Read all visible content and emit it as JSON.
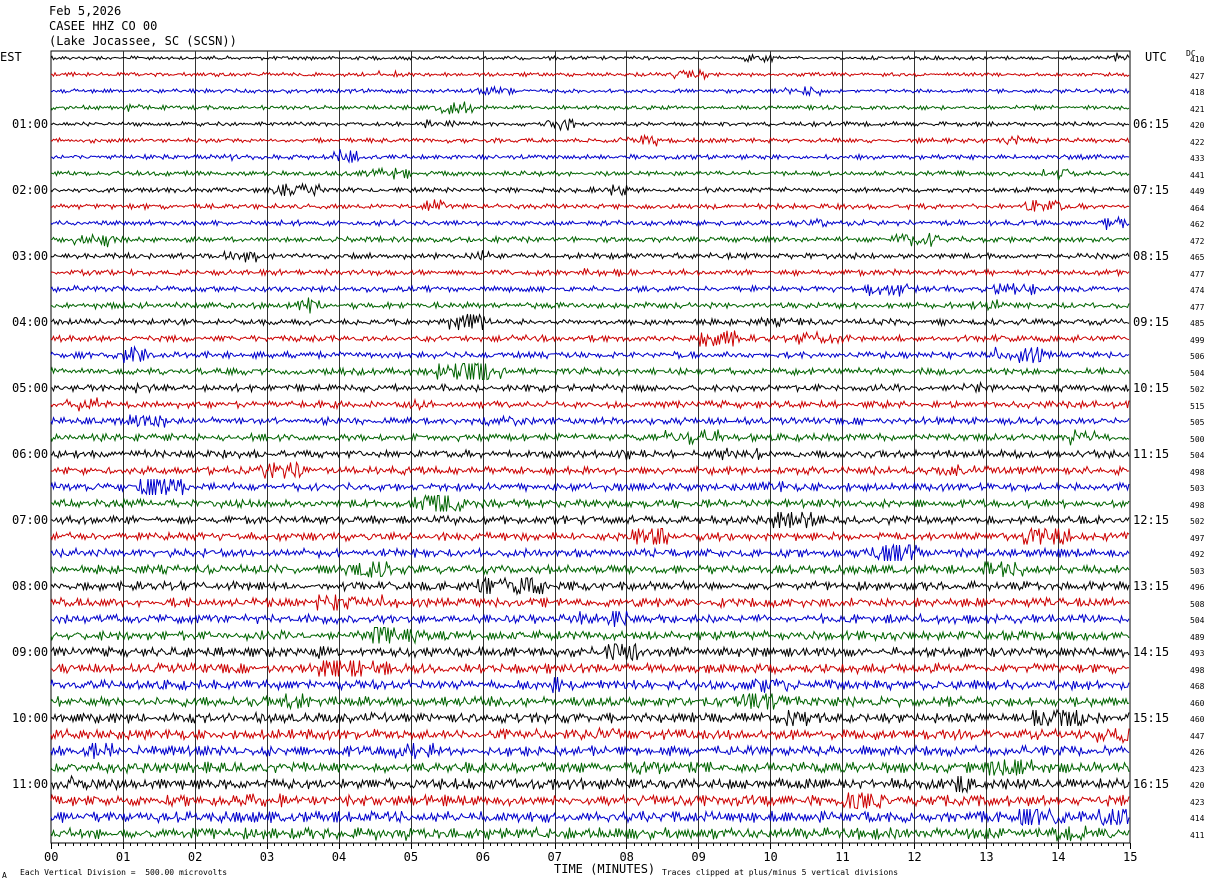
{
  "header": {
    "date": "Feb 5,2026",
    "station": "CASEE HHZ CO 00",
    "location": "(Lake Jocassee, SC (SCSN))"
  },
  "left_tz": "EST",
  "right_tz": "UTC",
  "dc_label": "DC",
  "footer": {
    "scale_note": "Each Vertical Division =  500.00 microvolts",
    "clip_note": "Traces clipped at plus/minus 5 vertical divisions",
    "corner_mark": "A"
  },
  "chart_data": {
    "type": "line",
    "xlabel": "TIME (MINUTES)",
    "ylabel": "",
    "x_ticks": [
      "00",
      "01",
      "02",
      "03",
      "04",
      "05",
      "06",
      "07",
      "08",
      "09",
      "10",
      "11",
      "12",
      "13",
      "14",
      "15"
    ],
    "xlim": [
      0,
      15
    ],
    "grid": true,
    "trace_colors": [
      "#000000",
      "#cc0000",
      "#0000cc",
      "#006400"
    ],
    "left_labels": [
      "01:00",
      "02:00",
      "03:00",
      "04:00",
      "05:00",
      "06:00",
      "07:00",
      "08:00",
      "09:00",
      "10:00",
      "11:00"
    ],
    "right_labels": [
      "06:15",
      "07:15",
      "08:15",
      "09:15",
      "10:15",
      "11:15",
      "12:15",
      "13:15",
      "14:15",
      "15:15",
      "16:15"
    ],
    "dc_offsets": [
      "410",
      "427",
      "418",
      "421",
      "420",
      "422",
      "433",
      "441",
      "449",
      "464",
      "462",
      "472",
      "465",
      "477",
      "474",
      "477",
      "485",
      "499",
      "506",
      "504",
      "502",
      "515",
      "505",
      "500",
      "504",
      "498",
      "503",
      "498",
      "502",
      "497",
      "492",
      "503",
      "496",
      "508",
      "504",
      "489",
      "493",
      "498",
      "468",
      "460",
      "460",
      "447",
      "426",
      "423",
      "420",
      "423",
      "414",
      "411"
    ]
  }
}
